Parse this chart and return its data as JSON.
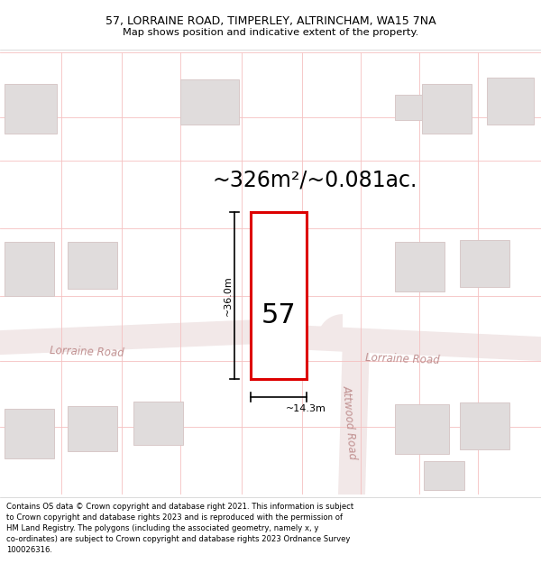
{
  "title_line1": "57, LORRAINE ROAD, TIMPERLEY, ALTRINCHAM, WA15 7NA",
  "title_line2": "Map shows position and indicative extent of the property.",
  "area_text": "~326m²/~0.081ac.",
  "property_number": "57",
  "width_label": "~14.3m",
  "height_label": "~36.0m",
  "footer_lines": [
    "Contains OS data © Crown copyright and database right 2021. This information is subject",
    "to Crown copyright and database rights 2023 and is reproduced with the permission of",
    "HM Land Registry. The polygons (including the associated geometry, namely x, y",
    "co-ordinates) are subject to Crown copyright and database rights 2023 Ordnance Survey",
    "100026316."
  ],
  "map_bg": "#ffffff",
  "plot_color": "#dd0000",
  "grid_color": "#f5c0c0",
  "road_fill": "#f2e8e8",
  "road_line": "#e8c8c8",
  "building_fill": "#e0dcdc",
  "building_stroke": "#d8c8c8",
  "road_label_color": "#c09090",
  "title_fontsize": 9.0,
  "subtitle_fontsize": 8.2,
  "footer_fontsize": 6.1,
  "area_fontsize": 17,
  "num_fontsize": 22,
  "dim_fontsize": 8.0,
  "road_label_fontsize": 8.5
}
